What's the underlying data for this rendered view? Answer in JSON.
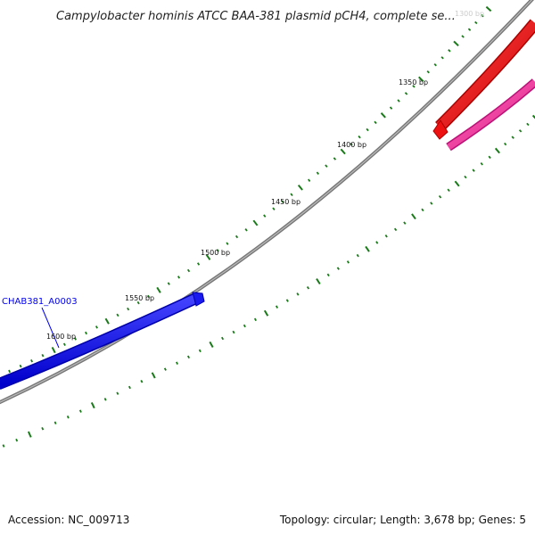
{
  "title": "Campylobacter hominis ATCC BAA-381 plasmid pCH4, complete se...",
  "title_overlay": "1300 bp",
  "footer": {
    "accession": "Accession: NC_009713",
    "summary": "Topology: circular; Length: 3,678 bp; Genes: 5"
  },
  "genes": [
    {
      "label": "CHAB381_A0003",
      "color": "#0000ee"
    }
  ],
  "tick_labels": [
    "1350 bp",
    "1400 bp",
    "1450 bp",
    "1500 bp",
    "1550 bp",
    "1600 bp"
  ],
  "colors": {
    "backbone": "#888888",
    "tick": "#1a7a1a",
    "gene_blue": "#1a1aee",
    "feature_red": "#ee1111",
    "feature_pink": "#ee3399"
  }
}
